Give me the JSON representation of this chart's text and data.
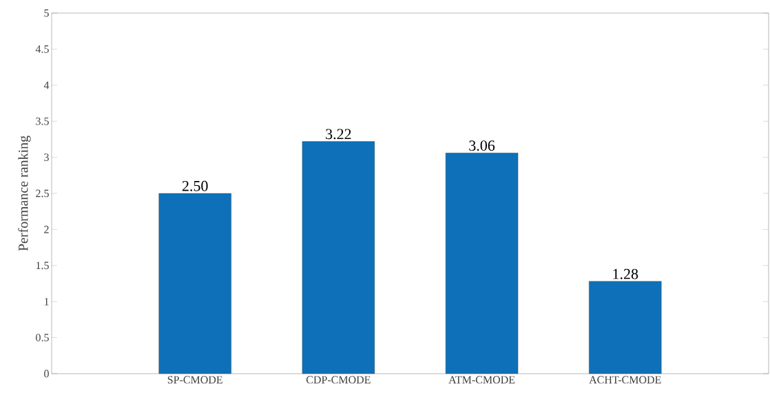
{
  "chart_data": {
    "type": "bar",
    "ylabel": "Performance ranking",
    "categories": [
      "SP-CMODE",
      "CDP-CMODE",
      "ATM-CMODE",
      "ACHT-CMODE"
    ],
    "values": [
      2.5,
      3.22,
      3.06,
      1.28
    ],
    "value_labels": [
      "2.50",
      "3.22",
      "3.06",
      "1.28"
    ],
    "color": "#0e70b8",
    "ylim": [
      0,
      5
    ],
    "yticks": [
      0,
      0.5,
      1,
      1.5,
      2,
      2.5,
      3,
      3.5,
      4,
      4.5,
      5
    ]
  }
}
